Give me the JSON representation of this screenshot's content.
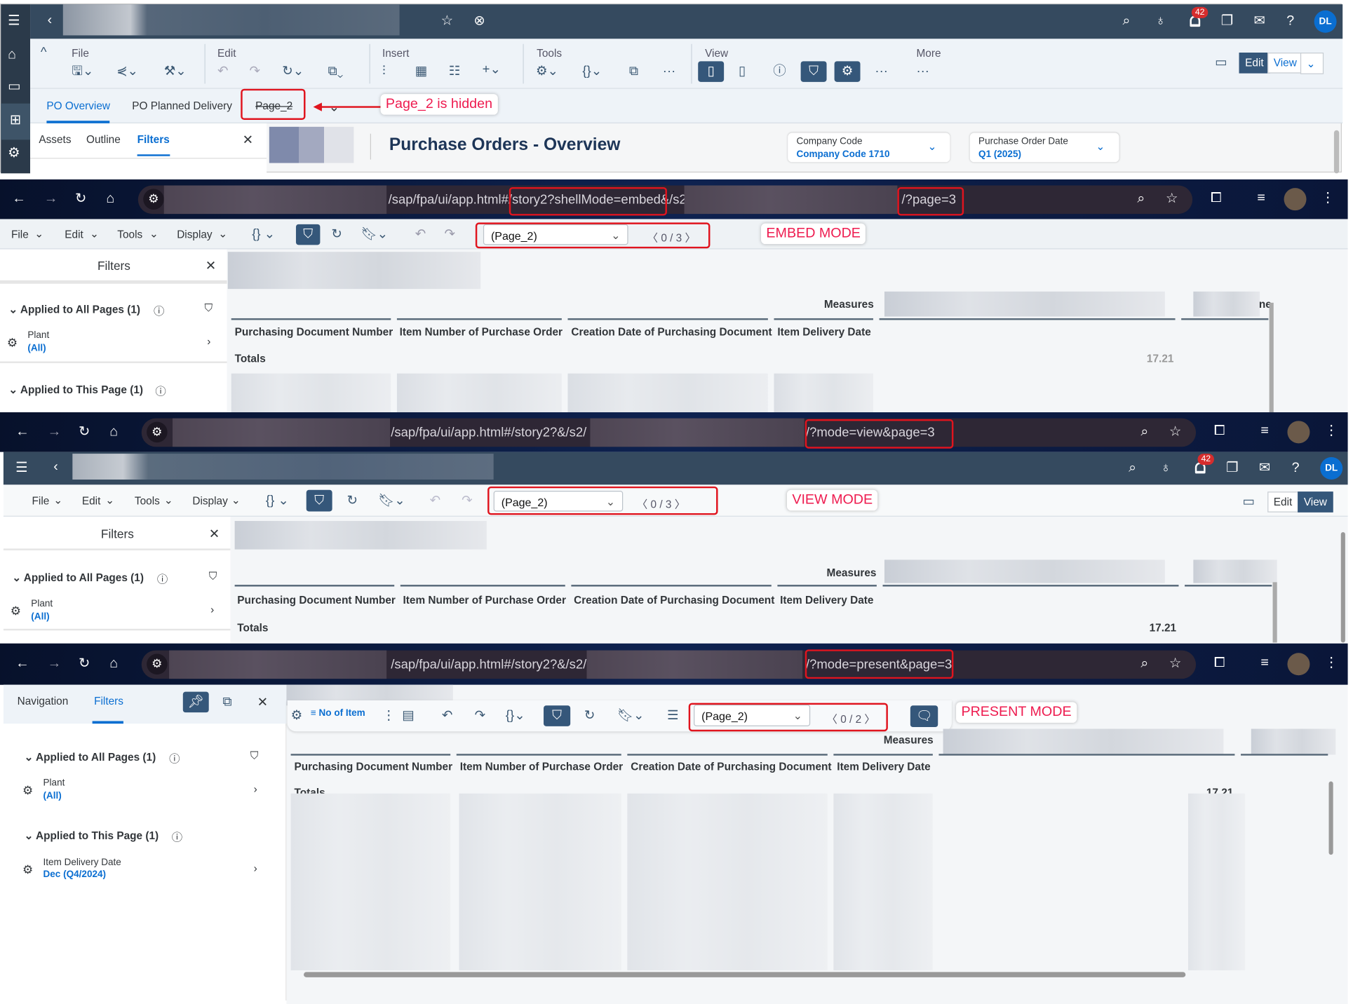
{
  "annotations": {
    "hidden_note": "Page_2 is hidden",
    "embed": "EMBED MODE",
    "view": "VIEW MODE",
    "present": "PRESENT MODE"
  },
  "colors": {
    "shell": "#354a5f",
    "accent": "#0a6ed1",
    "annotation": "#ee1b4f",
    "highlight_box": "#e0141e",
    "active_button": "#35577a"
  },
  "edit_mode": {
    "notification_count": "42",
    "avatar": "DL",
    "toolbar_groups": [
      "File",
      "Edit",
      "Insert",
      "Tools",
      "View",
      "More"
    ],
    "mode_buttons": {
      "edit": "Edit",
      "view": "View"
    },
    "tabs": [
      "PO Overview",
      "PO Planned Delivery",
      "Page_2"
    ],
    "side_tabs": [
      "Assets",
      "Outline",
      "Filters"
    ],
    "title": "Purchase Orders - Overview",
    "filters": [
      {
        "label": "Company Code",
        "value": "Company Code 1710"
      },
      {
        "label": "Purchase Order Date",
        "value": "Q1 (2025)"
      }
    ]
  },
  "embed_mode": {
    "url_path": "/sap/fpa/ui/app.html#/story2?shellMode=embed&/s2/",
    "url_query": "/?page=3",
    "menu": [
      "File",
      "Edit",
      "Tools",
      "Display"
    ],
    "page_select": "(Page_2)",
    "page_counter": "0 / 3",
    "filters_title": "Filters",
    "applied_all": "Applied to All Pages (1)",
    "plant_label": "Plant",
    "plant_value": "(All)",
    "applied_page": "Applied to This Page (1)",
    "measures": "Measures",
    "columns": [
      "Purchasing Document Number",
      "Item Number of Purchase Order",
      "Creation Date of Purchasing Document",
      "Item Delivery Date"
    ],
    "totals": "Totals",
    "total_value": "17.21",
    "clipped": "ne"
  },
  "view_mode": {
    "url_path": "/sap/fpa/ui/app.html#/story2?&/s2/",
    "url_query": "/?mode=view&page=3",
    "notification_count": "42",
    "avatar": "DL",
    "menu": [
      "File",
      "Edit",
      "Tools",
      "Display"
    ],
    "page_select": "(Page_2)",
    "page_counter": "0 / 3",
    "mode_buttons": {
      "edit": "Edit",
      "view": "View"
    },
    "filters_title": "Filters",
    "applied_all": "Applied to All Pages (1)",
    "plant_label": "Plant",
    "plant_value": "(All)",
    "measures": "Measures",
    "columns": [
      "Purchasing Document Number",
      "Item Number of Purchase Order",
      "Creation Date of Purchasing Document",
      "Item Delivery Date"
    ],
    "totals": "Totals",
    "total_value": "17.21"
  },
  "present_mode": {
    "url_path": "/sap/fpa/ui/app.html#/story2?&/s2/",
    "url_query": "/?mode=present&page=3",
    "side_tabs": [
      "Navigation",
      "Filters"
    ],
    "no_of_item": "No of Item",
    "page_select": "(Page_2)",
    "page_counter": "0 / 2",
    "applied_all": "Applied to All Pages (1)",
    "plant_label": "Plant",
    "plant_value": "(All)",
    "applied_page": "Applied to This Page (1)",
    "date_label": "Item Delivery Date",
    "date_value": "Dec (Q4/2024)",
    "measures": "Measures",
    "columns": [
      "Purchasing Document Number",
      "Item Number of Purchase Order",
      "Creation Date of Purchasing Document",
      "Item Delivery Date"
    ],
    "totals": "Totals",
    "total_value": "17.21"
  }
}
